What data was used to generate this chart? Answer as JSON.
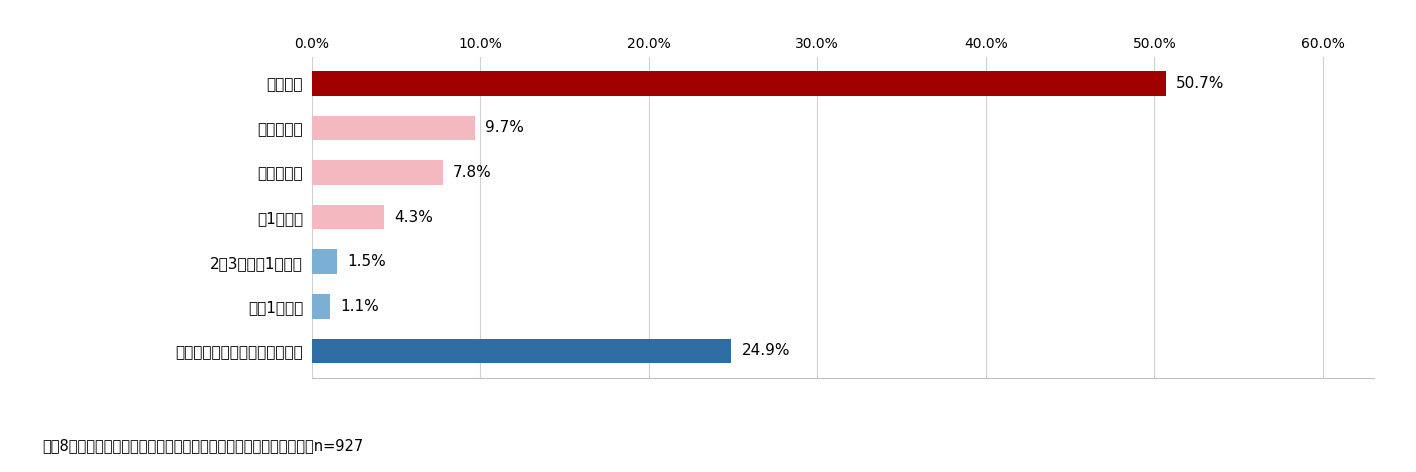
{
  "categories": [
    "つけっぱなしで寝ることはない",
    "月に1日以下",
    "2～3週間に1日程度",
    "週1日程度",
    "週２～３日",
    "週４～５日",
    "ほぼ毎日"
  ],
  "values": [
    24.9,
    1.1,
    1.5,
    4.3,
    7.8,
    9.7,
    50.7
  ],
  "colors": [
    "#2e6da4",
    "#7bafd4",
    "#7bafd4",
    "#f4b8c1",
    "#f4b8c1",
    "#f4b8c1",
    "#a00000"
  ],
  "xlim": [
    0,
    63
  ],
  "xticks": [
    0,
    10,
    20,
    30,
    40,
    50,
    60
  ],
  "xtick_labels": [
    "0.0%",
    "10.0%",
    "20.0%",
    "30.0%",
    "40.0%",
    "50.0%",
    "60.0%"
  ],
  "caption": "＜図8：夏の就寝時に、エアコンを朝までつけっぱなしで寝る頻度＞n=927",
  "background_color": "#ffffff",
  "bar_height": 0.55,
  "value_label_fontsize": 11,
  "category_fontsize": 11,
  "xtick_fontsize": 10,
  "caption_fontsize": 10.5
}
